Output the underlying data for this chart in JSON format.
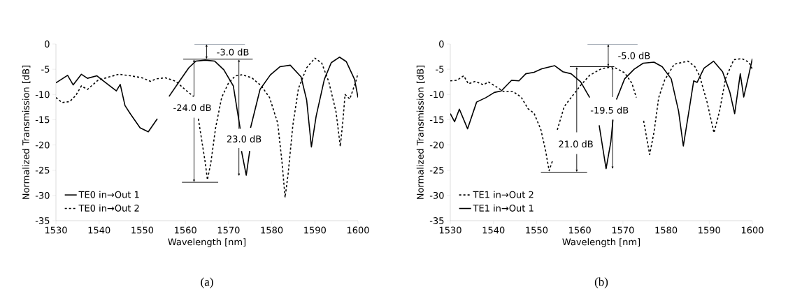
{
  "chart_data": [
    {
      "type": "line",
      "xlabel": "Wavelength [nm]",
      "ylabel": "Normalized Transmission [dB]",
      "xlim": [
        1530,
        1600
      ],
      "ylim": [
        -35,
        0
      ],
      "xticks": [
        1530,
        1540,
        1550,
        1560,
        1570,
        1580,
        1590,
        1600
      ],
      "yticks": [
        -35,
        -30,
        -25,
        -20,
        -15,
        -10,
        -5,
        0
      ],
      "legend": "bottom left",
      "series": [
        {
          "name": "TE0 in→Out 1",
          "color": "#000000",
          "line_style": "solid",
          "x": [
            1530,
            1532.7,
            1534,
            1535.9,
            1537.3,
            1539.5,
            1541.1,
            1544,
            1544.9,
            1546,
            1547.3,
            1549.5,
            1551.4,
            1553.5,
            1554.8,
            1556.2,
            1558.6,
            1560.8,
            1562.4,
            1564.6,
            1566.8,
            1568.9,
            1571.1,
            1572.7,
            1572.85,
            1573,
            1574.1,
            1574.9,
            1575,
            1575.1,
            1577.3,
            1579.7,
            1581.9,
            1584.3,
            1586.8,
            1588.1,
            1589.2,
            1590.3,
            1592.2,
            1593.8,
            1595.7,
            1597.3,
            1599.2,
            1600
          ],
          "values": [
            -7.7,
            -6.2,
            -8.1,
            -6,
            -6.8,
            -6.3,
            -7.4,
            -9.3,
            -8,
            -12.2,
            -13.9,
            -16.6,
            -17.4,
            -14.8,
            null,
            -10.4,
            -7.4,
            -4.7,
            -3.4,
            -3.2,
            -3.4,
            -5.1,
            -8.3,
            -16.8,
            null,
            -21.2,
            -26,
            -21.2,
            null,
            -16.6,
            -9,
            -6.1,
            -4.5,
            -4.2,
            -6.5,
            -11.1,
            -20.4,
            -14.3,
            -7,
            -3.7,
            -2.6,
            -3.5,
            -7,
            -10.6
          ]
        },
        {
          "name": "TE0 in→Out 2",
          "color": "#000000",
          "line_style": "dashed",
          "x": [
            1530,
            1531.4,
            1533.2,
            1534.6,
            1535.9,
            1537.3,
            1539.7,
            1542.4,
            1544.6,
            1547.3,
            1550,
            1551.9,
            1553.2,
            1555.4,
            1557.8,
            1560.3,
            1561.9,
            1562.5,
            1563,
            1564.6,
            1565.1,
            1565.9,
            1567,
            1568.4,
            1570,
            1571.6,
            1573.2,
            1575.4,
            1577.6,
            1579.5,
            1581.4,
            1582.4,
            1583.1,
            1583.8,
            1584.9,
            1586.2,
            1588.1,
            1590,
            1591.6,
            1593.2,
            1594.9,
            1595.9,
            1596.5,
            1597,
            1598.1,
            1599.5,
            1600
          ],
          "values": [
            -10.6,
            -11.6,
            -11.4,
            -10.2,
            -8.3,
            -9,
            -7.2,
            -6.5,
            -6,
            -6.3,
            -6.7,
            -7.4,
            -6.9,
            -6.7,
            -7.4,
            -9.3,
            -10.4,
            null,
            -14.8,
            -23.5,
            -26.9,
            -23.5,
            -16.6,
            -10.6,
            -7.7,
            -6.3,
            -6.1,
            -6.7,
            -8.3,
            -10.6,
            -15.7,
            -23.5,
            -30.4,
            -25.8,
            -16.1,
            -8.8,
            -4.7,
            -2.8,
            -3.8,
            -7.4,
            -13.4,
            -20.3,
            -15.2,
            -10,
            -10.9,
            -7.4,
            -5.8
          ]
        }
      ],
      "annotations": [
        {
          "text": "-3.0 dB",
          "x": 1564.9,
          "y": -3
        },
        {
          "text": "-24.0 dB",
          "x": 1562,
          "y": -3
        },
        "23.0 dB",
        "(a)"
      ]
    },
    {
      "type": "line",
      "xlabel": "Wavelength [nm]",
      "ylabel": "Normalized Transmission [dB]",
      "xlim": [
        1530,
        1600
      ],
      "ylim": [
        -35,
        0
      ],
      "xticks": [
        1530,
        1540,
        1550,
        1560,
        1570,
        1580,
        1590,
        1600
      ],
      "yticks": [
        -35,
        -30,
        -25,
        -20,
        -15,
        -10,
        -5,
        0
      ],
      "legend": "bottom left",
      "series": [
        {
          "name": "TE1 in→Out 2",
          "color": "#000000",
          "line_style": "dashed",
          "x": [
            1530,
            1531.5,
            1533.1,
            1534.2,
            1535.8,
            1537.7,
            1538.8,
            1540.7,
            1542.3,
            1544.5,
            1546.4,
            1548,
            1549.4,
            1551,
            1552.1,
            1552.9,
            1553.7,
            1554.2,
            1554.8,
            1556.4,
            1558,
            1560.2,
            1562.3,
            1565,
            1567.7,
            1570.4,
            1572.1,
            1573.1,
            1574,
            1574.8,
            1576.2,
            1577.2,
            1578.3,
            1579.7,
            1581.9,
            1585.1,
            1586.7,
            1587.8,
            1589.5,
            1591.1,
            1592.4,
            1593.8,
            1595.7,
            1597.6,
            1599.2,
            1600
          ],
          "values": [
            -7.3,
            -7.2,
            -6.3,
            -7.9,
            -7.4,
            -8.1,
            -7.5,
            -8.5,
            -9.4,
            -9.4,
            -10.5,
            -12.8,
            -13.7,
            -17,
            -21.2,
            -25.1,
            -23.1,
            null,
            -17,
            -12.4,
            -10.6,
            -8.2,
            -6.2,
            -4.9,
            -4.5,
            -5.7,
            -7.8,
            -10.6,
            null,
            -15.2,
            -21.9,
            -17.5,
            -10.6,
            -7.1,
            -4,
            -3.4,
            -4.5,
            -6.4,
            -11.5,
            -17.6,
            -13.3,
            -6.8,
            -3.1,
            -2.9,
            -3.6,
            -5
          ]
        },
        {
          "name": "TE1 in→Out 1",
          "color": "#000000",
          "line_style": "solid",
          "x": [
            1530,
            1531,
            1532.1,
            1534,
            1536.1,
            1538.3,
            1540.2,
            1541.8,
            1544.2,
            1545.9,
            1547.5,
            1549.4,
            1551.2,
            1554.2,
            1556.1,
            1558,
            1560.2,
            1562.3,
            1563.4,
            1564.5,
            1566.1,
            1567.2,
            1567.7,
            1568,
            1568.5,
            1570.4,
            1572.6,
            1574.7,
            1577.2,
            1579.1,
            1581.2,
            1582.9,
            1584,
            1585.3,
            1586.4,
            1587.2,
            1588.8,
            1591,
            1593.1,
            1594.8,
            1595.9,
            1597.2,
            1598,
            1599.1,
            1600
          ],
          "values": [
            -13.8,
            -15.4,
            -12.9,
            -16.8,
            -11.5,
            -10.6,
            -9.6,
            -9.3,
            -7.2,
            -7.3,
            -5.9,
            -5.6,
            -4.9,
            -4.3,
            -5.5,
            -5.9,
            -7.5,
            -10.6,
            null,
            -16.1,
            -24.7,
            -19.4,
            -15,
            null,
            -11,
            -6.9,
            -5,
            -3.8,
            -3.6,
            -4.5,
            -6.9,
            -13.3,
            -20.2,
            -13.3,
            -7.3,
            -7.6,
            -4.8,
            -3.4,
            -5.5,
            -9.6,
            -13.8,
            -5.9,
            -10.5,
            -6.4,
            -2.9
          ]
        }
      ],
      "annotations": [
        {
          "text": "-5.0 dB",
          "x": 1566.6,
          "y": -4.5
        },
        {
          "text": "-19.5 dB",
          "x": 1567.6,
          "y": -4.5
        },
        "21.0 dB",
        "(b)"
      ]
    }
  ]
}
